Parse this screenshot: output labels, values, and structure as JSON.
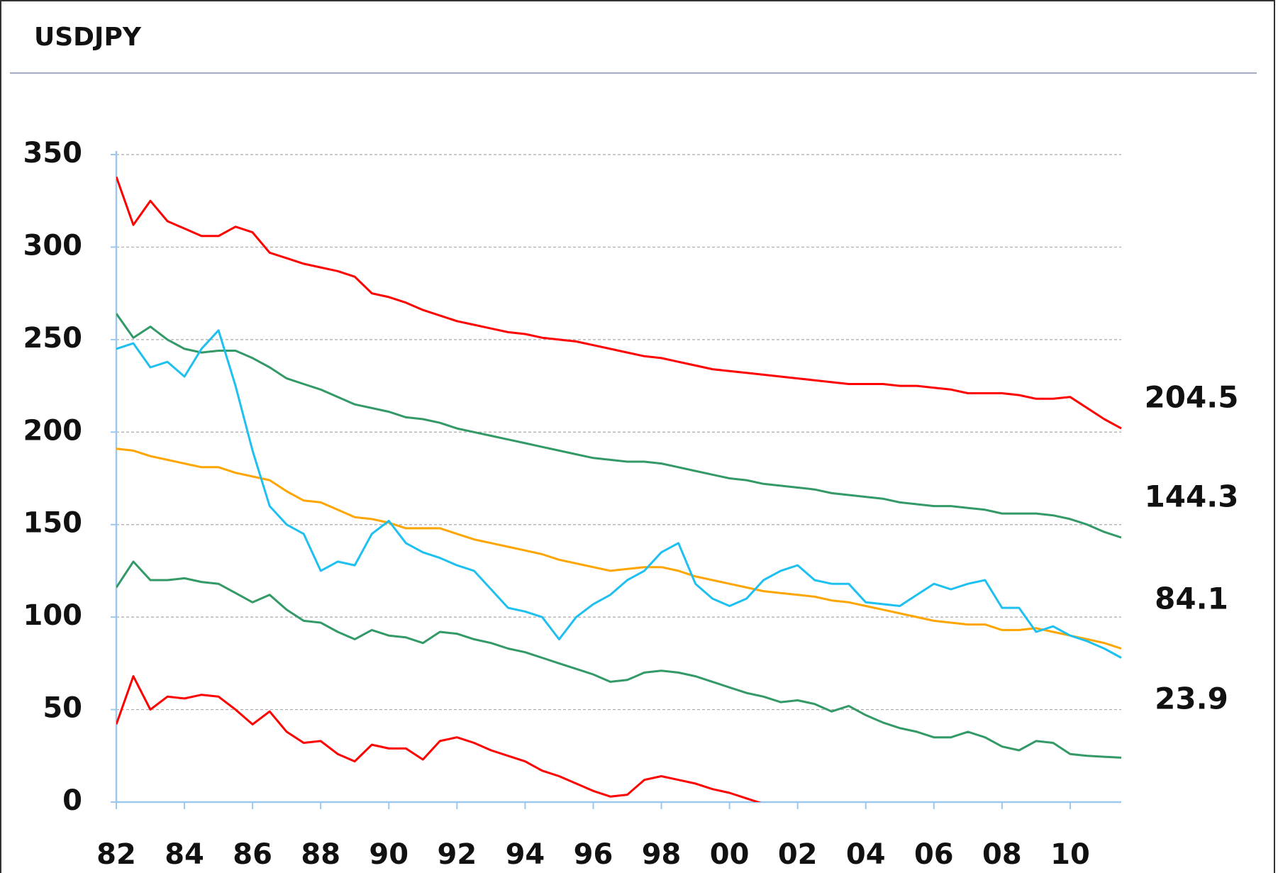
{
  "chart_data": {
    "type": "line",
    "title": "USDJPY",
    "x": [
      1982,
      1982.5,
      1983,
      1983.5,
      1984,
      1984.5,
      1985,
      1985.5,
      1986,
      1986.5,
      1987,
      1987.5,
      1988,
      1988.5,
      1989,
      1989.5,
      1990,
      1990.5,
      1991,
      1991.5,
      1992,
      1992.5,
      1993,
      1993.5,
      1994,
      1994.5,
      1995,
      1995.5,
      1996,
      1996.5,
      1997,
      1997.5,
      1998,
      1998.5,
      1999,
      1999.5,
      2000,
      2000.5,
      2001,
      2001.5,
      2002,
      2002.5,
      2003,
      2003.5,
      2004,
      2004.5,
      2005,
      2005.5,
      2006,
      2006.5,
      2007,
      2007.5,
      2008,
      2008.5,
      2009,
      2009.5,
      2010,
      2010.5,
      2011,
      2011.5
    ],
    "series": [
      {
        "color": "#ff0000",
        "values": [
          338,
          312,
          325,
          314,
          310,
          306,
          306,
          311,
          308,
          297,
          294,
          291,
          289,
          287,
          284,
          275,
          273,
          270,
          266,
          263,
          260,
          258,
          256,
          254,
          253,
          251,
          250,
          249,
          247,
          245,
          243,
          241,
          240,
          238,
          236,
          234,
          233,
          232,
          231,
          230,
          229,
          228,
          227,
          226,
          226,
          226,
          225,
          225,
          224,
          223,
          221,
          221,
          221,
          220,
          218,
          218,
          219,
          213,
          207,
          202
        ]
      },
      {
        "color": "#339966",
        "values": [
          264,
          251,
          257,
          250,
          245,
          243,
          244,
          244,
          240,
          235,
          229,
          226,
          223,
          219,
          215,
          213,
          211,
          208,
          207,
          205,
          202,
          200,
          198,
          196,
          194,
          192,
          190,
          188,
          186,
          185,
          184,
          184,
          183,
          181,
          179,
          177,
          175,
          174,
          172,
          171,
          170,
          169,
          167,
          166,
          165,
          164,
          162,
          161,
          160,
          160,
          159,
          158,
          156,
          156,
          156,
          155,
          153,
          150,
          146,
          143
        ]
      },
      {
        "color": "#ffa500",
        "values": [
          191,
          190,
          187,
          185,
          183,
          181,
          181,
          178,
          176,
          174,
          168,
          163,
          162,
          158,
          154,
          153,
          151,
          148,
          148,
          148,
          145,
          142,
          140,
          138,
          136,
          134,
          131,
          129,
          127,
          125,
          126,
          127,
          127,
          125,
          122,
          120,
          118,
          116,
          114,
          113,
          112,
          111,
          109,
          108,
          106,
          104,
          102,
          100,
          98,
          97,
          96,
          96,
          93,
          93,
          94,
          92,
          90,
          88,
          86,
          83
        ]
      },
      {
        "color": "#1ec0f0",
        "values": [
          245,
          248,
          235,
          238,
          230,
          245,
          255,
          225,
          190,
          160,
          150,
          145,
          125,
          130,
          128,
          145,
          152,
          140,
          135,
          132,
          128,
          125,
          115,
          105,
          103,
          100,
          88,
          100,
          107,
          112,
          120,
          125,
          135,
          140,
          118,
          110,
          106,
          110,
          120,
          125,
          128,
          120,
          118,
          118,
          108,
          107,
          106,
          112,
          118,
          115,
          118,
          120,
          105,
          105,
          92,
          95,
          90,
          87,
          83,
          78
        ]
      },
      {
        "color": "#339966",
        "values": [
          116,
          130,
          120,
          120,
          121,
          119,
          118,
          113,
          108,
          112,
          104,
          98,
          97,
          92,
          88,
          93,
          90,
          89,
          86,
          92,
          91,
          88,
          86,
          83,
          81,
          78,
          75,
          72,
          69,
          65,
          66,
          70,
          71,
          70,
          68,
          65,
          62,
          59,
          57,
          54,
          55,
          53,
          49,
          52,
          47,
          43,
          40,
          38,
          35,
          35,
          38,
          35,
          30,
          28,
          33,
          32,
          26,
          25,
          24.5,
          24
        ]
      },
      {
        "color": "#ff0000",
        "values": [
          42,
          68,
          50,
          57,
          56,
          58,
          57,
          50,
          42,
          49,
          38,
          32,
          33,
          26,
          22,
          31,
          29,
          29,
          23,
          33,
          35,
          32,
          28,
          25,
          22,
          17,
          14,
          10,
          6,
          3,
          4,
          12,
          14,
          12,
          10,
          7,
          5,
          2,
          -1,
          null,
          null,
          null,
          null,
          null,
          null,
          null,
          null,
          null,
          null,
          null,
          null,
          null,
          null,
          null,
          null,
          null,
          null,
          null,
          null,
          null
        ]
      }
    ],
    "xlim": [
      1982,
      2011.5
    ],
    "xticks": [
      {
        "value": 1982,
        "label": "82"
      },
      {
        "value": 1984,
        "label": "84"
      },
      {
        "value": 1986,
        "label": "86"
      },
      {
        "value": 1988,
        "label": "88"
      },
      {
        "value": 1990,
        "label": "90"
      },
      {
        "value": 1992,
        "label": "92"
      },
      {
        "value": 1994,
        "label": "94"
      },
      {
        "value": 1996,
        "label": "96"
      },
      {
        "value": 1998,
        "label": "98"
      },
      {
        "value": 2000,
        "label": "00"
      },
      {
        "value": 2002,
        "label": "02"
      },
      {
        "value": 2004,
        "label": "04"
      },
      {
        "value": 2006,
        "label": "06"
      },
      {
        "value": 2008,
        "label": "08"
      },
      {
        "value": 2010,
        "label": "10"
      }
    ],
    "ylim": [
      0,
      350
    ],
    "yticks": [
      0,
      50,
      100,
      150,
      200,
      250,
      300,
      350
    ],
    "grid": true,
    "annotations": [
      "204.5",
      "144.3",
      "84.1",
      "23.9"
    ]
  }
}
